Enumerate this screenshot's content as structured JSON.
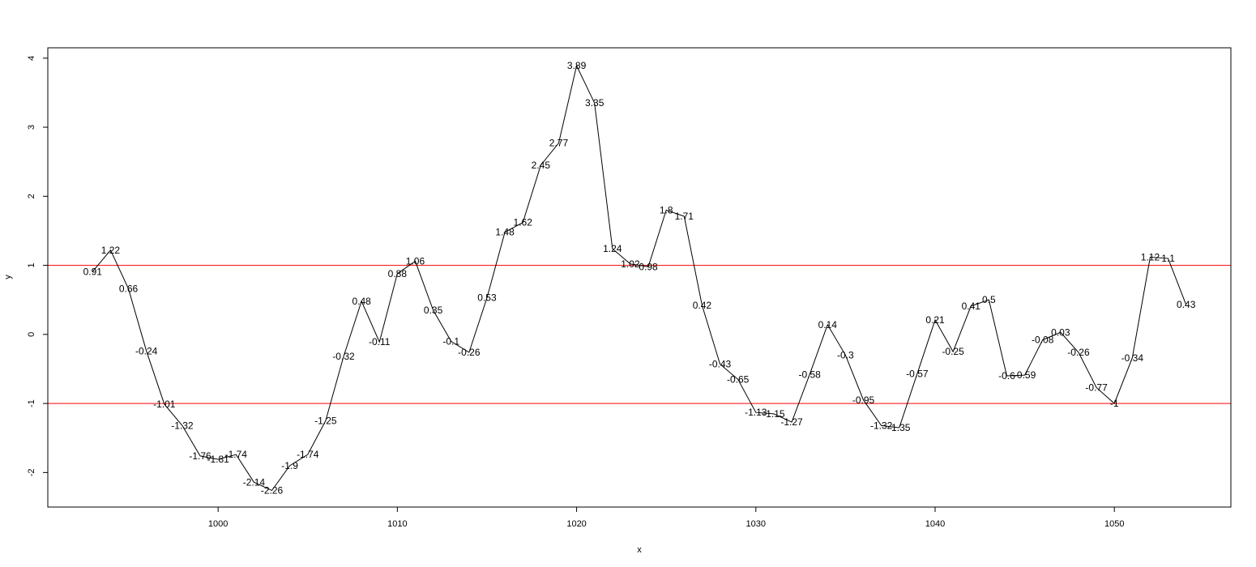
{
  "chart_data": {
    "type": "line",
    "xlabel": "x",
    "ylabel": "y",
    "xlim": [
      990.5,
      1056.5
    ],
    "ylim": [
      -2.5,
      4.15
    ],
    "x_ticks": [
      1000,
      1010,
      1020,
      1030,
      1040,
      1050
    ],
    "y_ticks": [
      -2,
      -1,
      0,
      1,
      2,
      3,
      4
    ],
    "grid": false,
    "series": [
      {
        "color": "#000000",
        "x": [
          993,
          994,
          995,
          996,
          997,
          998,
          999,
          1000,
          1001,
          1002,
          1003,
          1004,
          1005,
          1006,
          1007,
          1008,
          1009,
          1010,
          1011,
          1012,
          1013,
          1014,
          1015,
          1016,
          1017,
          1018,
          1019,
          1020,
          1021,
          1022,
          1023,
          1024,
          1025,
          1026,
          1027,
          1028,
          1029,
          1030,
          1031,
          1032,
          1033,
          1034,
          1035,
          1036,
          1037,
          1038,
          1039,
          1040,
          1041,
          1042,
          1043,
          1044,
          1045,
          1046,
          1047,
          1048,
          1049,
          1050,
          1051,
          1052,
          1053,
          1054
        ],
        "y": [
          0.91,
          1.22,
          0.66,
          -0.24,
          -1.01,
          -1.32,
          -1.76,
          -1.81,
          -1.74,
          -2.14,
          -2.26,
          -1.9,
          -1.74,
          -1.25,
          -0.32,
          0.48,
          -0.11,
          0.88,
          1.06,
          0.35,
          -0.1,
          -0.26,
          0.53,
          1.48,
          1.62,
          2.45,
          2.77,
          3.89,
          3.35,
          1.24,
          1.02,
          0.98,
          1.8,
          1.71,
          0.42,
          -0.43,
          -0.65,
          -1.13,
          -1.15,
          -1.27,
          -0.58,
          0.14,
          -0.3,
          -0.95,
          -1.32,
          -1.35,
          -0.57,
          0.21,
          -0.25,
          0.41,
          0.5,
          -0.6,
          -0.59,
          -0.08,
          0.03,
          -0.26,
          -0.77,
          -1,
          -0.34,
          1.12,
          1.1,
          0.43
        ],
        "labels": [
          "0.91",
          "1.22",
          "0.66",
          "-0.24",
          "-1.01",
          "-1.32",
          "-1.76",
          "-1.81",
          "-1.74",
          "-2.14",
          "-2.26",
          "-1.9",
          "-1.74",
          "-1.25",
          "-0.32",
          "0.48",
          "-0.11",
          "0.88",
          "1.06",
          "0.35",
          "-0.1",
          "-0.26",
          "0.53",
          "1.48",
          "1.62",
          "2.45",
          "2.77",
          "3.89",
          "3.35",
          "1.24",
          "1.02",
          "0.98",
          "1.8",
          "1.71",
          "0.42",
          "-0.43",
          "-0.65",
          "-1.13",
          "-1.15",
          "-1.27",
          "-0.58",
          "0.14",
          "-0.3",
          "-0.95",
          "-1.32",
          "-1.35",
          "-0.57",
          "0.21",
          "-0.25",
          "0.41",
          "0.5",
          "-0.6",
          "-0.59",
          "-0.08",
          "0.03",
          "-0.26",
          "-0.77",
          "-1",
          "-0.34",
          "1.12",
          "1.1",
          "0.43"
        ]
      }
    ],
    "reference_lines": [
      {
        "axis": "y",
        "value": 1,
        "color": "#ff0000"
      },
      {
        "axis": "y",
        "value": -1,
        "color": "#ff0000"
      }
    ]
  }
}
